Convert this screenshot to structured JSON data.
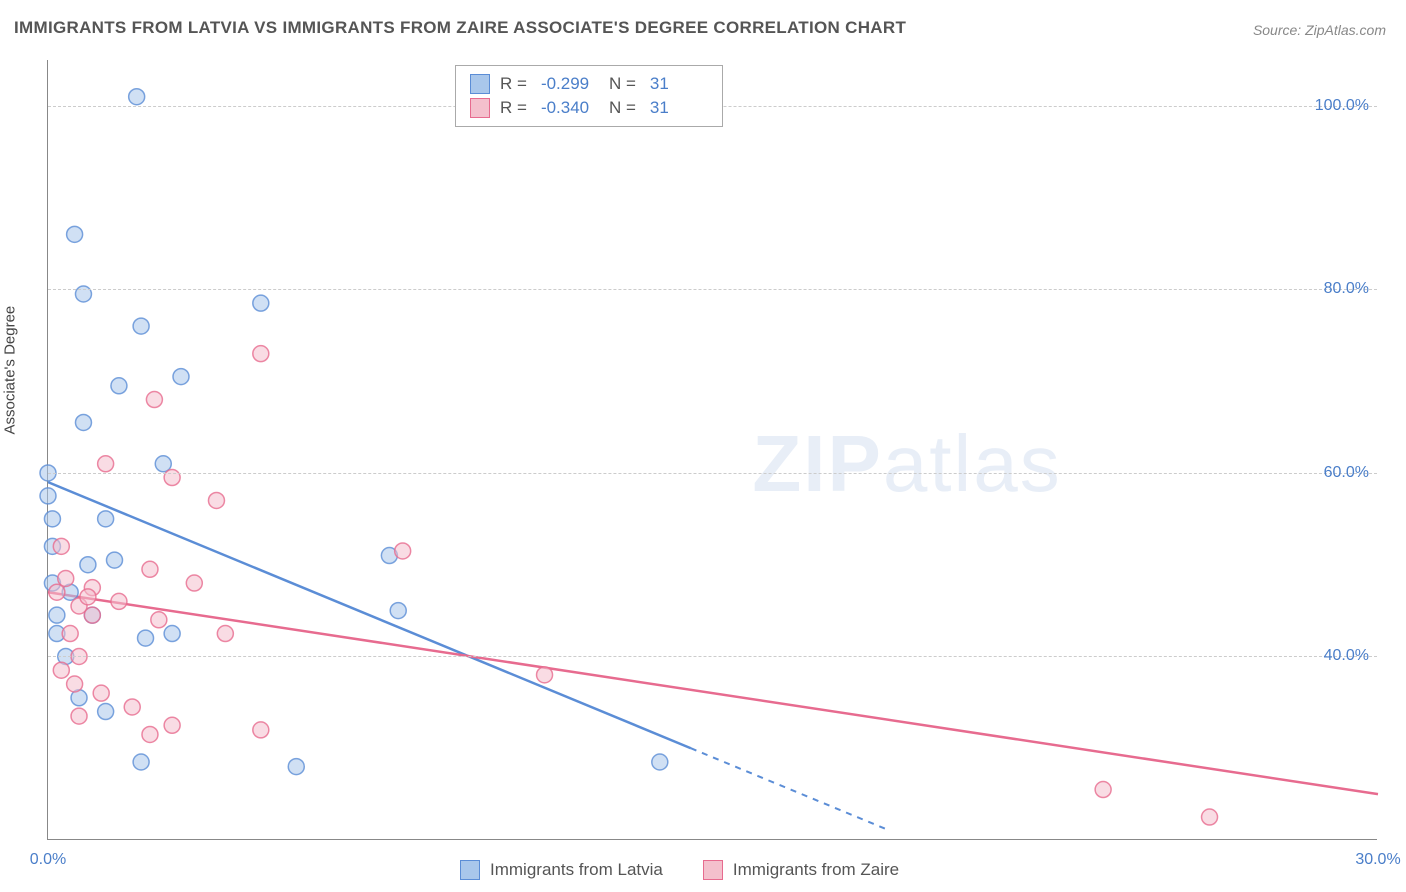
{
  "title": "IMMIGRANTS FROM LATVIA VS IMMIGRANTS FROM ZAIRE ASSOCIATE'S DEGREE CORRELATION CHART",
  "source_label": "Source: ZipAtlas.com",
  "watermark": {
    "bold": "ZIP",
    "rest": "atlas"
  },
  "y_axis_title": "Associate's Degree",
  "chart": {
    "type": "scatter",
    "background_color": "#ffffff",
    "grid_color": "#cccccc",
    "axis_color": "#888888",
    "xlim": [
      0,
      30
    ],
    "ylim": [
      20,
      105
    ],
    "x_ticks": [
      0,
      30
    ],
    "x_tick_labels": [
      "0.0%",
      "30.0%"
    ],
    "y_ticks": [
      40,
      60,
      80,
      100
    ],
    "y_tick_labels": [
      "40.0%",
      "60.0%",
      "80.0%",
      "100.0%"
    ],
    "y_tick_label_fontsize": 16,
    "y_tick_label_color": "#4a7ec9",
    "marker_radius": 8,
    "marker_opacity": 0.55,
    "marker_stroke_width": 1.5,
    "series": [
      {
        "name": "Immigrants from Latvia",
        "color_fill": "#a9c7eb",
        "color_stroke": "#5b8dd6",
        "r_value": "-0.299",
        "n_value": "31",
        "trend": {
          "x1": 0,
          "y1": 59,
          "x2": 14.5,
          "y2": 30,
          "dash_from_x": 14.5,
          "dash_to_x": 19
        },
        "points": [
          [
            2.0,
            101
          ],
          [
            0.6,
            86
          ],
          [
            0.8,
            79.5
          ],
          [
            2.1,
            76
          ],
          [
            4.8,
            78.5
          ],
          [
            1.6,
            69.5
          ],
          [
            3.0,
            70.5
          ],
          [
            0.8,
            65.5
          ],
          [
            0.0,
            60
          ],
          [
            0.0,
            57.5
          ],
          [
            0.1,
            55
          ],
          [
            0.1,
            52
          ],
          [
            0.1,
            48
          ],
          [
            2.6,
            61
          ],
          [
            1.5,
            50.5
          ],
          [
            0.9,
            50
          ],
          [
            0.5,
            47
          ],
          [
            7.7,
            51
          ],
          [
            7.9,
            45
          ],
          [
            0.2,
            44.5
          ],
          [
            0.2,
            42.5
          ],
          [
            0.4,
            40
          ],
          [
            1.0,
            44.5
          ],
          [
            2.2,
            42
          ],
          [
            2.8,
            42.5
          ],
          [
            0.7,
            35.5
          ],
          [
            1.3,
            34
          ],
          [
            2.1,
            28.5
          ],
          [
            5.6,
            28
          ],
          [
            13.8,
            28.5
          ],
          [
            1.3,
            55
          ]
        ]
      },
      {
        "name": "Immigrants from Zaire",
        "color_fill": "#f4c0cd",
        "color_stroke": "#e76b8f",
        "r_value": "-0.340",
        "n_value": "31",
        "trend": {
          "x1": 0,
          "y1": 47,
          "x2": 30,
          "y2": 25
        },
        "points": [
          [
            4.8,
            73
          ],
          [
            2.4,
            68
          ],
          [
            1.3,
            61
          ],
          [
            2.8,
            59.5
          ],
          [
            3.8,
            57
          ],
          [
            0.3,
            52
          ],
          [
            8.0,
            51.5
          ],
          [
            2.3,
            49.5
          ],
          [
            3.3,
            48
          ],
          [
            0.4,
            48.5
          ],
          [
            1.0,
            47.5
          ],
          [
            0.2,
            47
          ],
          [
            0.7,
            45.5
          ],
          [
            0.9,
            46.5
          ],
          [
            1.6,
            46
          ],
          [
            1.0,
            44.5
          ],
          [
            0.5,
            42.5
          ],
          [
            2.5,
            44
          ],
          [
            4.0,
            42.5
          ],
          [
            11.2,
            38
          ],
          [
            0.7,
            40
          ],
          [
            0.3,
            38.5
          ],
          [
            0.6,
            37
          ],
          [
            1.2,
            36
          ],
          [
            1.9,
            34.5
          ],
          [
            0.7,
            33.5
          ],
          [
            2.3,
            31.5
          ],
          [
            2.8,
            32.5
          ],
          [
            4.8,
            32
          ],
          [
            23.8,
            25.5
          ],
          [
            26.2,
            22.5
          ]
        ]
      }
    ]
  },
  "legend_top": {
    "r_label": "R  =",
    "n_label": "N  ="
  }
}
